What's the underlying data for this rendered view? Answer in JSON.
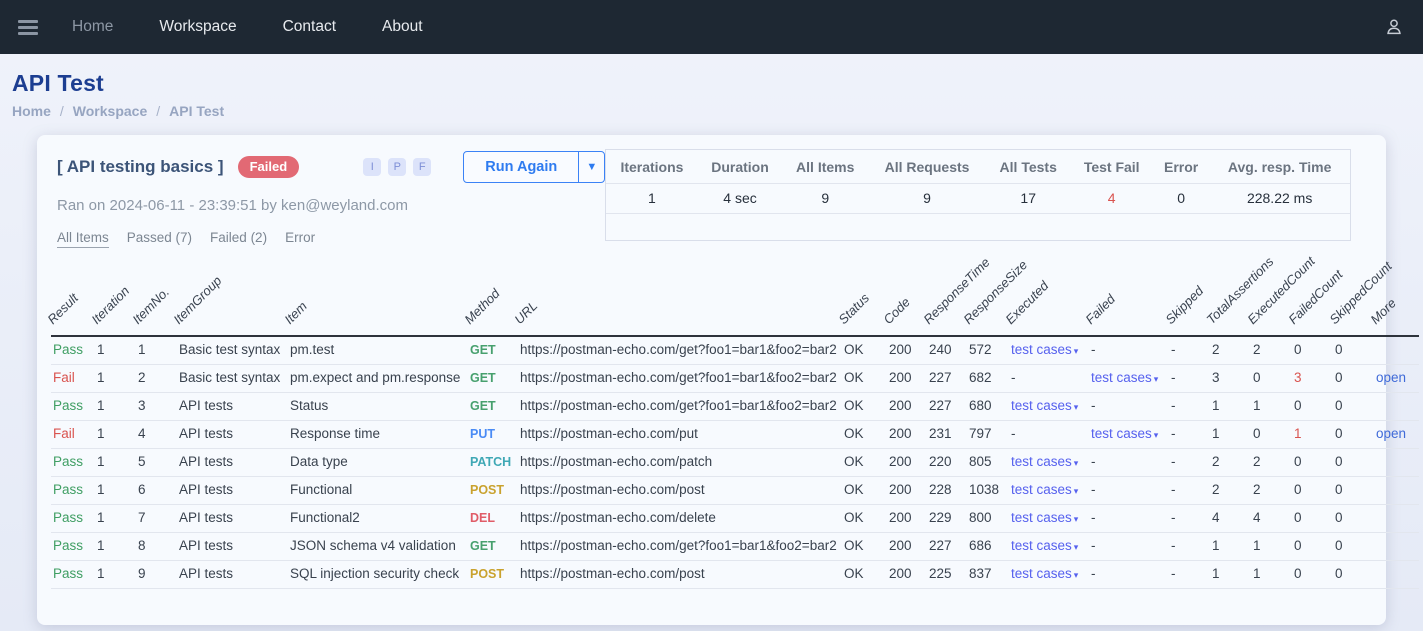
{
  "navbar": {
    "items": [
      {
        "label": "Home",
        "muted": true
      },
      {
        "label": "Workspace",
        "muted": false
      },
      {
        "label": "Contact",
        "muted": false
      },
      {
        "label": "About",
        "muted": false
      }
    ]
  },
  "page": {
    "title": "API Test",
    "breadcrumb": [
      "Home",
      "Workspace",
      "API Test"
    ],
    "breadcrumb_separator": "/"
  },
  "run": {
    "collection_name": "[ API testing basics ]",
    "status_badge": "Failed",
    "ran_on": "Ran on 2024-06-11 - 23:39:51 by ken@weyland.com",
    "filter_buttons": [
      "I",
      "P",
      "F"
    ],
    "run_again_label": "Run Again",
    "tabs": [
      {
        "label": "All Items",
        "active": true
      },
      {
        "label": "Passed (7)",
        "active": false
      },
      {
        "label": "Failed (2)",
        "active": false
      },
      {
        "label": "Error",
        "active": false
      }
    ]
  },
  "summary": {
    "columns": [
      {
        "label": "Iterations",
        "value": "1",
        "highlight": false
      },
      {
        "label": "Duration",
        "value": "4 sec",
        "highlight": false
      },
      {
        "label": "All Items",
        "value": "9",
        "highlight": false
      },
      {
        "label": "All Requests",
        "value": "9",
        "highlight": false
      },
      {
        "label": "All Tests",
        "value": "17",
        "highlight": false
      },
      {
        "label": "Test Fail",
        "value": "4",
        "highlight": true
      },
      {
        "label": "Error",
        "value": "0",
        "highlight": false
      },
      {
        "label": "Avg. resp. Time",
        "value": "228.22 ms",
        "highlight": false
      }
    ]
  },
  "results": {
    "headers": [
      "Result",
      "Iteration",
      "ItemNo.",
      "ItemGroup",
      "Item",
      "Method",
      "URL",
      "Status",
      "Code",
      "ResponseTime",
      "ResponseSize",
      "Executed",
      "Failed",
      "Skipped",
      "TotalAssertions",
      "ExecutedCount",
      "FailedCount",
      "SkippedCount",
      "More"
    ],
    "test_cases_link_label": "test cases",
    "open_link_label": "open",
    "rows": [
      {
        "result": "Pass",
        "iteration": "1",
        "item_no": "1",
        "item_group": "Basic test syntax",
        "item": "pm.test",
        "method": "GET",
        "url": "https://postman-echo.com/get?foo1=bar1&foo2=bar2",
        "status": "OK",
        "code": "200",
        "response_time": "240",
        "response_size": "572",
        "executed": "test cases",
        "failed": "-",
        "skipped": "-",
        "total_assertions": "2",
        "executed_count": "2",
        "failed_count": "0",
        "skipped_count": "0",
        "more": ""
      },
      {
        "result": "Fail",
        "iteration": "1",
        "item_no": "2",
        "item_group": "Basic test syntax",
        "item": "pm.expect and pm.response",
        "method": "GET",
        "url": "https://postman-echo.com/get?foo1=bar1&foo2=bar2",
        "status": "OK",
        "code": "200",
        "response_time": "227",
        "response_size": "682",
        "executed": "-",
        "failed": "test cases",
        "skipped": "-",
        "total_assertions": "3",
        "executed_count": "0",
        "failed_count": "3",
        "skipped_count": "0",
        "more": "open"
      },
      {
        "result": "Pass",
        "iteration": "1",
        "item_no": "3",
        "item_group": "API tests",
        "item": "Status",
        "method": "GET",
        "url": "https://postman-echo.com/get?foo1=bar1&foo2=bar2",
        "status": "OK",
        "code": "200",
        "response_time": "227",
        "response_size": "680",
        "executed": "test cases",
        "failed": "-",
        "skipped": "-",
        "total_assertions": "1",
        "executed_count": "1",
        "failed_count": "0",
        "skipped_count": "0",
        "more": ""
      },
      {
        "result": "Fail",
        "iteration": "1",
        "item_no": "4",
        "item_group": "API tests",
        "item": "Response time",
        "method": "PUT",
        "url": "https://postman-echo.com/put",
        "status": "OK",
        "code": "200",
        "response_time": "231",
        "response_size": "797",
        "executed": "-",
        "failed": "test cases",
        "skipped": "-",
        "total_assertions": "1",
        "executed_count": "0",
        "failed_count": "1",
        "skipped_count": "0",
        "more": "open"
      },
      {
        "result": "Pass",
        "iteration": "1",
        "item_no": "5",
        "item_group": "API tests",
        "item": "Data type",
        "method": "PATCH",
        "url": "https://postman-echo.com/patch",
        "status": "OK",
        "code": "200",
        "response_time": "220",
        "response_size": "805",
        "executed": "test cases",
        "failed": "-",
        "skipped": "-",
        "total_assertions": "2",
        "executed_count": "2",
        "failed_count": "0",
        "skipped_count": "0",
        "more": ""
      },
      {
        "result": "Pass",
        "iteration": "1",
        "item_no": "6",
        "item_group": "API tests",
        "item": "Functional",
        "method": "POST",
        "url": "https://postman-echo.com/post",
        "status": "OK",
        "code": "200",
        "response_time": "228",
        "response_size": "1038",
        "executed": "test cases",
        "failed": "-",
        "skipped": "-",
        "total_assertions": "2",
        "executed_count": "2",
        "failed_count": "0",
        "skipped_count": "0",
        "more": ""
      },
      {
        "result": "Pass",
        "iteration": "1",
        "item_no": "7",
        "item_group": "API tests",
        "item": "Functional2",
        "method": "DEL",
        "url": "https://postman-echo.com/delete",
        "status": "OK",
        "code": "200",
        "response_time": "229",
        "response_size": "800",
        "executed": "test cases",
        "failed": "-",
        "skipped": "-",
        "total_assertions": "4",
        "executed_count": "4",
        "failed_count": "0",
        "skipped_count": "0",
        "more": ""
      },
      {
        "result": "Pass",
        "iteration": "1",
        "item_no": "8",
        "item_group": "API tests",
        "item": "JSON schema v4 validation",
        "method": "GET",
        "url": "https://postman-echo.com/get?foo1=bar1&foo2=bar2",
        "status": "OK",
        "code": "200",
        "response_time": "227",
        "response_size": "686",
        "executed": "test cases",
        "failed": "-",
        "skipped": "-",
        "total_assertions": "1",
        "executed_count": "1",
        "failed_count": "0",
        "skipped_count": "0",
        "more": ""
      },
      {
        "result": "Pass",
        "iteration": "1",
        "item_no": "9",
        "item_group": "API tests",
        "item": "SQL injection security check",
        "method": "POST",
        "url": "https://postman-echo.com/post",
        "status": "OK",
        "code": "200",
        "response_time": "225",
        "response_size": "837",
        "executed": "test cases",
        "failed": "-",
        "skipped": "-",
        "total_assertions": "1",
        "executed_count": "1",
        "failed_count": "0",
        "skipped_count": "0",
        "more": ""
      }
    ]
  },
  "colors": {
    "pass": "#3f9e63",
    "fail": "#d9534f",
    "test_fail_value": "#d9534f",
    "badge_bg": "#e26974",
    "accent_blue": "#2e7bf0",
    "link_indigo": "#5661ee",
    "link_blue": "#3f6ad8",
    "navbar_bg": "#1e2833",
    "title_blue": "#1c3e91",
    "method": {
      "GET": "#47a06e",
      "PUT": "#4a8bf5",
      "PATCH": "#3fa8b5",
      "POST": "#c9a22e",
      "DEL": "#e05c68"
    }
  }
}
